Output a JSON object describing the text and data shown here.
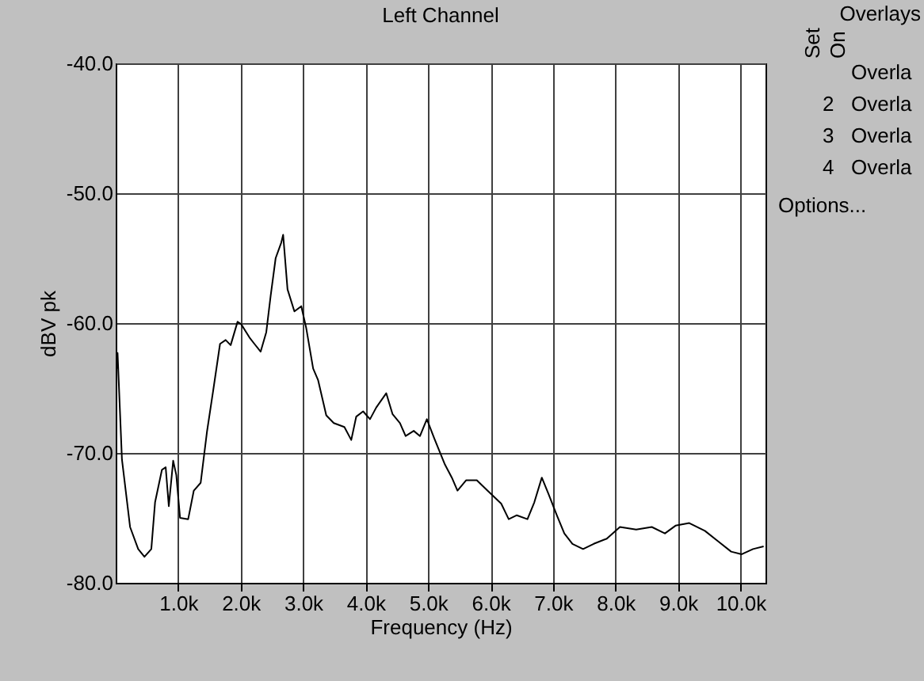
{
  "chart_data": {
    "type": "line",
    "title": "Left Channel",
    "xlabel": "Frequency (Hz)",
    "ylabel": "dBV pk",
    "x": [
      30,
      30,
      100,
      230,
      360,
      460,
      570,
      630,
      740,
      800,
      850,
      920,
      970,
      1030,
      1160,
      1250,
      1360,
      1460,
      1560,
      1670,
      1760,
      1840,
      1950,
      2010,
      2140,
      2220,
      2320,
      2410,
      2480,
      2560,
      2650,
      2680,
      2750,
      2860,
      2970,
      3050,
      3160,
      3240,
      3370,
      3490,
      3660,
      3770,
      3850,
      3960,
      4070,
      4170,
      4330,
      4430,
      4550,
      4640,
      4770,
      4870,
      4980,
      5100,
      5270,
      5380,
      5470,
      5610,
      5780,
      5950,
      6170,
      6290,
      6420,
      6590,
      6700,
      6820,
      6930,
      7060,
      7180,
      7310,
      7480,
      7650,
      7860,
      8070,
      8330,
      8580,
      8790,
      8960,
      9180,
      9430,
      9640,
      9850,
      10020,
      10200,
      10370
    ],
    "series": [
      {
        "color": "#000000",
        "values": [
          -63.5,
          -62.3,
          -70.5,
          -75.7,
          -77.4,
          -78,
          -77.4,
          -73.8,
          -71.3,
          -71.1,
          -74.1,
          -70.6,
          -71.7,
          -75,
          -75.1,
          -72.9,
          -72.3,
          -68.4,
          -65.2,
          -61.6,
          -61.3,
          -61.7,
          -59.9,
          -60.1,
          -61.1,
          -61.6,
          -62.2,
          -60.7,
          -57.9,
          -55,
          -53.8,
          -53.2,
          -57.4,
          -59.1,
          -58.7,
          -60.4,
          -63.5,
          -64.4,
          -67.1,
          -67.7,
          -68,
          -69,
          -67.2,
          -66.8,
          -67.4,
          -66.5,
          -65.4,
          -67,
          -67.7,
          -68.7,
          -68.3,
          -68.7,
          -67.4,
          -68.9,
          -70.9,
          -71.9,
          -72.9,
          -72.1,
          -72.1,
          -72.9,
          -73.9,
          -75.1,
          -74.8,
          -75.1,
          -73.8,
          -71.9,
          -73.2,
          -74.8,
          -76.2,
          -77,
          -77.4,
          -77,
          -76.6,
          -75.7,
          -75.9,
          -75.7,
          -76.2,
          -75.6,
          -75.4,
          -76,
          -76.8,
          -77.6,
          -77.8,
          -77.4,
          -77.2
        ]
      }
    ],
    "xlim": [
      0,
      10400
    ],
    "xticks": [
      {
        "value": 1000,
        "label": "1.0k"
      },
      {
        "value": 2000,
        "label": "2.0k"
      },
      {
        "value": 3000,
        "label": "3.0k"
      },
      {
        "value": 4000,
        "label": "4.0k"
      },
      {
        "value": 5000,
        "label": "5.0k"
      },
      {
        "value": 6000,
        "label": "6.0k"
      },
      {
        "value": 7000,
        "label": "7.0k"
      },
      {
        "value": 8000,
        "label": "8.0k"
      },
      {
        "value": 9000,
        "label": "9.0k"
      },
      {
        "value": 10000,
        "label": "10.0k"
      }
    ],
    "ylim": [
      -80,
      -40
    ],
    "yticks": [
      {
        "value": -80,
        "label": "-80.0"
      },
      {
        "value": -70,
        "label": "-70.0"
      },
      {
        "value": -60,
        "label": "-60.0"
      },
      {
        "value": -50,
        "label": "-50.0"
      },
      {
        "value": -40,
        "label": "-40.0"
      }
    ],
    "grid": true,
    "legend": false,
    "marker": "none",
    "line_style": "solid",
    "annotations": [
      "Overlays",
      "Set",
      "On",
      "2",
      "3",
      "4",
      "Overla",
      "Overla",
      "Overla",
      "Overla",
      "Options..."
    ]
  }
}
